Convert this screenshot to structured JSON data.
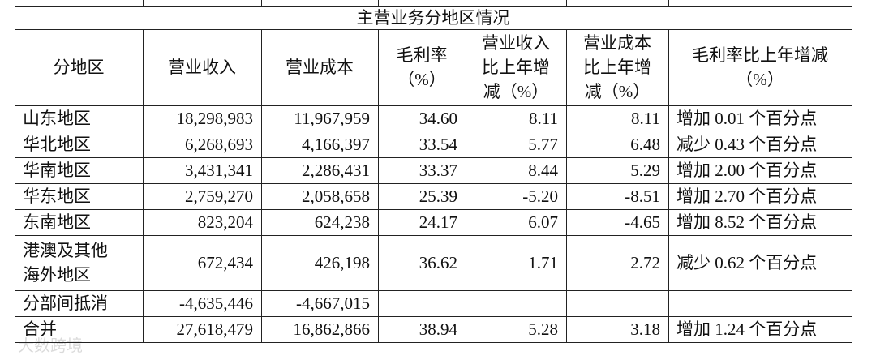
{
  "table": {
    "title": "主营业务分地区情况",
    "headers": [
      [
        "分地区"
      ],
      [
        "营业收入"
      ],
      [
        "营业成本"
      ],
      [
        "毛利率",
        "（%）"
      ],
      [
        "营业收入",
        "比上年增",
        "减（%）"
      ],
      [
        "营业成本",
        "比上年增",
        "减（%）"
      ],
      [
        "毛利率比上年增减",
        "（%）"
      ]
    ],
    "rows": [
      [
        [
          "山东地区"
        ],
        "18,298,983",
        "11,967,959",
        "34.60",
        "8.11",
        "8.11",
        "增加 0.01 个百分点"
      ],
      [
        [
          "华北地区"
        ],
        "6,268,693",
        "4,166,397",
        "33.54",
        "5.77",
        "6.48",
        "减少 0.43 个百分点"
      ],
      [
        [
          "华南地区"
        ],
        "3,431,341",
        "2,286,431",
        "33.37",
        "8.44",
        "5.29",
        "增加 2.00 个百分点"
      ],
      [
        [
          "华东地区"
        ],
        "2,759,270",
        "2,058,658",
        "25.39",
        "-5.20",
        "-8.51",
        "增加 2.70 个百分点"
      ],
      [
        [
          "东南地区"
        ],
        "823,204",
        "624,238",
        "24.17",
        "6.07",
        "-4.65",
        "增加 8.52 个百分点"
      ],
      [
        [
          "港澳及其他",
          "海外地区"
        ],
        "672,434",
        "426,198",
        "36.62",
        "1.71",
        "2.72",
        "减少 0.62 个百分点"
      ],
      [
        [
          "分部间抵消"
        ],
        "-4,635,446",
        "-4,667,015"
      ],
      [
        [
          "合并"
        ],
        "27,618,479",
        "16,862,866",
        "38.94",
        "5.28",
        "3.18",
        "增加 1.24 个百分点"
      ]
    ]
  },
  "watermark": "大数跨境"
}
